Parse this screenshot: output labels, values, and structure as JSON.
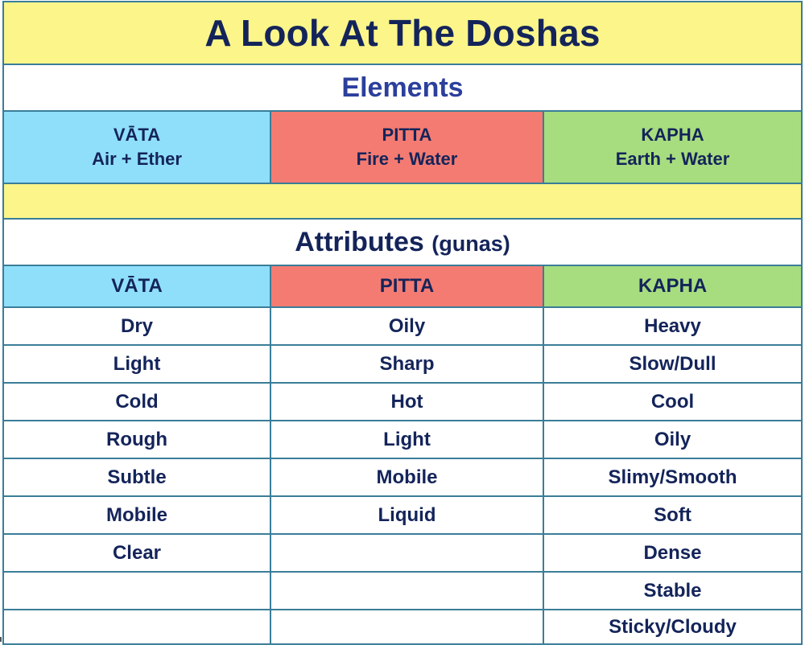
{
  "title": "A Look At The Doshas",
  "elements_heading": "Elements",
  "doshas": [
    {
      "name": "VĀTA",
      "elements": "Air + Ether",
      "color": "#8fdffa"
    },
    {
      "name": "PITTA",
      "elements": "Fire + Water",
      "color": "#f47b72"
    },
    {
      "name": "KAPHA",
      "elements": "Earth + Water",
      "color": "#a7dd7f"
    }
  ],
  "attributes_heading": "Attributes",
  "attributes_sub": "(gunas)",
  "attribute_headers": [
    "VĀTA",
    "PITTA",
    "KAPHA"
  ],
  "attribute_rows": [
    [
      "Dry",
      "Oily",
      "Heavy"
    ],
    [
      "Light",
      "Sharp",
      "Slow/Dull"
    ],
    [
      "Cold",
      "Hot",
      "Cool"
    ],
    [
      "Rough",
      "Light",
      "Oily"
    ],
    [
      "Subtle",
      "Mobile",
      "Slimy/Smooth"
    ],
    [
      "Mobile",
      "Liquid",
      "Soft"
    ],
    [
      "Clear",
      "",
      "Dense"
    ],
    [
      "",
      "",
      "Stable"
    ],
    [
      "",
      "",
      "Sticky/Cloudy"
    ]
  ],
  "colors": {
    "title_bg": "#fbf58a",
    "border": "#3a7d98",
    "text": "#14245a",
    "elements_heading": "#2c3f9c"
  }
}
